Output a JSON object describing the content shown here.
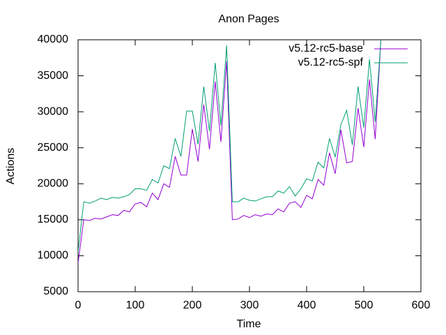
{
  "chart_data": {
    "type": "line",
    "title": "Anon Pages",
    "x_label": "Time",
    "y_label": "Actions",
    "x": [
      0,
      10,
      20,
      30,
      40,
      50,
      60,
      70,
      80,
      90,
      100,
      110,
      120,
      130,
      140,
      150,
      160,
      170,
      180,
      190,
      200,
      210,
      220,
      230,
      240,
      250,
      260,
      270,
      280,
      290,
      300,
      310,
      320,
      330,
      340,
      350,
      360,
      370,
      380,
      390,
      400,
      410,
      420,
      430,
      440,
      450,
      460,
      470,
      480,
      490,
      500,
      510,
      520,
      530
    ],
    "series": [
      {
        "name": "v5.12-rc5-base",
        "color": "#9400d3",
        "values": [
          9000,
          15000,
          14900,
          15200,
          15100,
          15400,
          15700,
          15600,
          16300,
          16100,
          17200,
          17400,
          16800,
          18700,
          17800,
          20000,
          19500,
          23800,
          21200,
          21200,
          27600,
          23100,
          31000,
          24800,
          34200,
          25800,
          37000,
          15000,
          15100,
          15600,
          15300,
          15700,
          15500,
          15800,
          15700,
          16500,
          16100,
          17300,
          17500,
          16700,
          18400,
          17900,
          20600,
          19800,
          24300,
          21400,
          27500,
          22900,
          23100,
          30500,
          25100,
          34500,
          26200,
          40000
        ]
      },
      {
        "name": "v5.12-rc5-spf",
        "color": "#009e73",
        "values": [
          10500,
          17500,
          17300,
          17600,
          18000,
          17800,
          18100,
          18000,
          18200,
          18500,
          19300,
          19300,
          19100,
          20600,
          20100,
          22500,
          22100,
          26300,
          23800,
          30100,
          30100,
          25500,
          33500,
          27300,
          36800,
          28100,
          39200,
          17500,
          17500,
          18000,
          17700,
          17600,
          17900,
          18200,
          18200,
          19000,
          18700,
          19600,
          18300,
          19300,
          20700,
          20400,
          23000,
          22200,
          26300,
          23700,
          28200,
          30200,
          25400,
          33500,
          27800,
          37300,
          28600,
          40000
        ]
      }
    ],
    "xlim": [
      0,
      600
    ],
    "ylim": [
      5000,
      40000
    ],
    "xticks": [
      0,
      100,
      200,
      300,
      400,
      500,
      600
    ],
    "yticks": [
      5000,
      10000,
      15000,
      20000,
      25000,
      30000,
      35000,
      40000
    ],
    "legend": "top-right"
  }
}
